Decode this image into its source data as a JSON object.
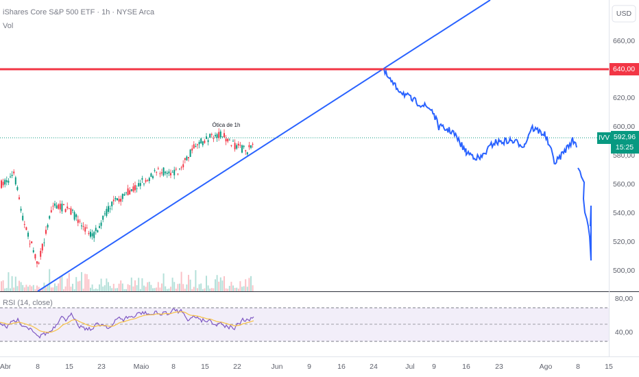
{
  "header": {
    "title": "iShares Core S&P 500 ETF · 1h · NYSE Arca",
    "volume": "Vol",
    "currency": "USD"
  },
  "price_axis": {
    "labels": [
      "660,00",
      "620,00",
      "600,00",
      "580,00",
      "560,00",
      "540,00",
      "520,00",
      "500,00"
    ],
    "level_label": "640,00",
    "ticker": "IVV",
    "last_price": "592,96",
    "countdown": "15:25"
  },
  "annotation": "Ótica de 1h",
  "indicator": {
    "title": "RSI (14, close)",
    "labels": [
      "80,00",
      "40,00"
    ]
  },
  "time_axis": [
    "Abr",
    "8",
    "15",
    "23",
    "Maio",
    "8",
    "15",
    "22",
    "Jun",
    "9",
    "16",
    "24",
    "Jul",
    "9",
    "16",
    "23",
    "Ago",
    "8",
    "15"
  ]
}
